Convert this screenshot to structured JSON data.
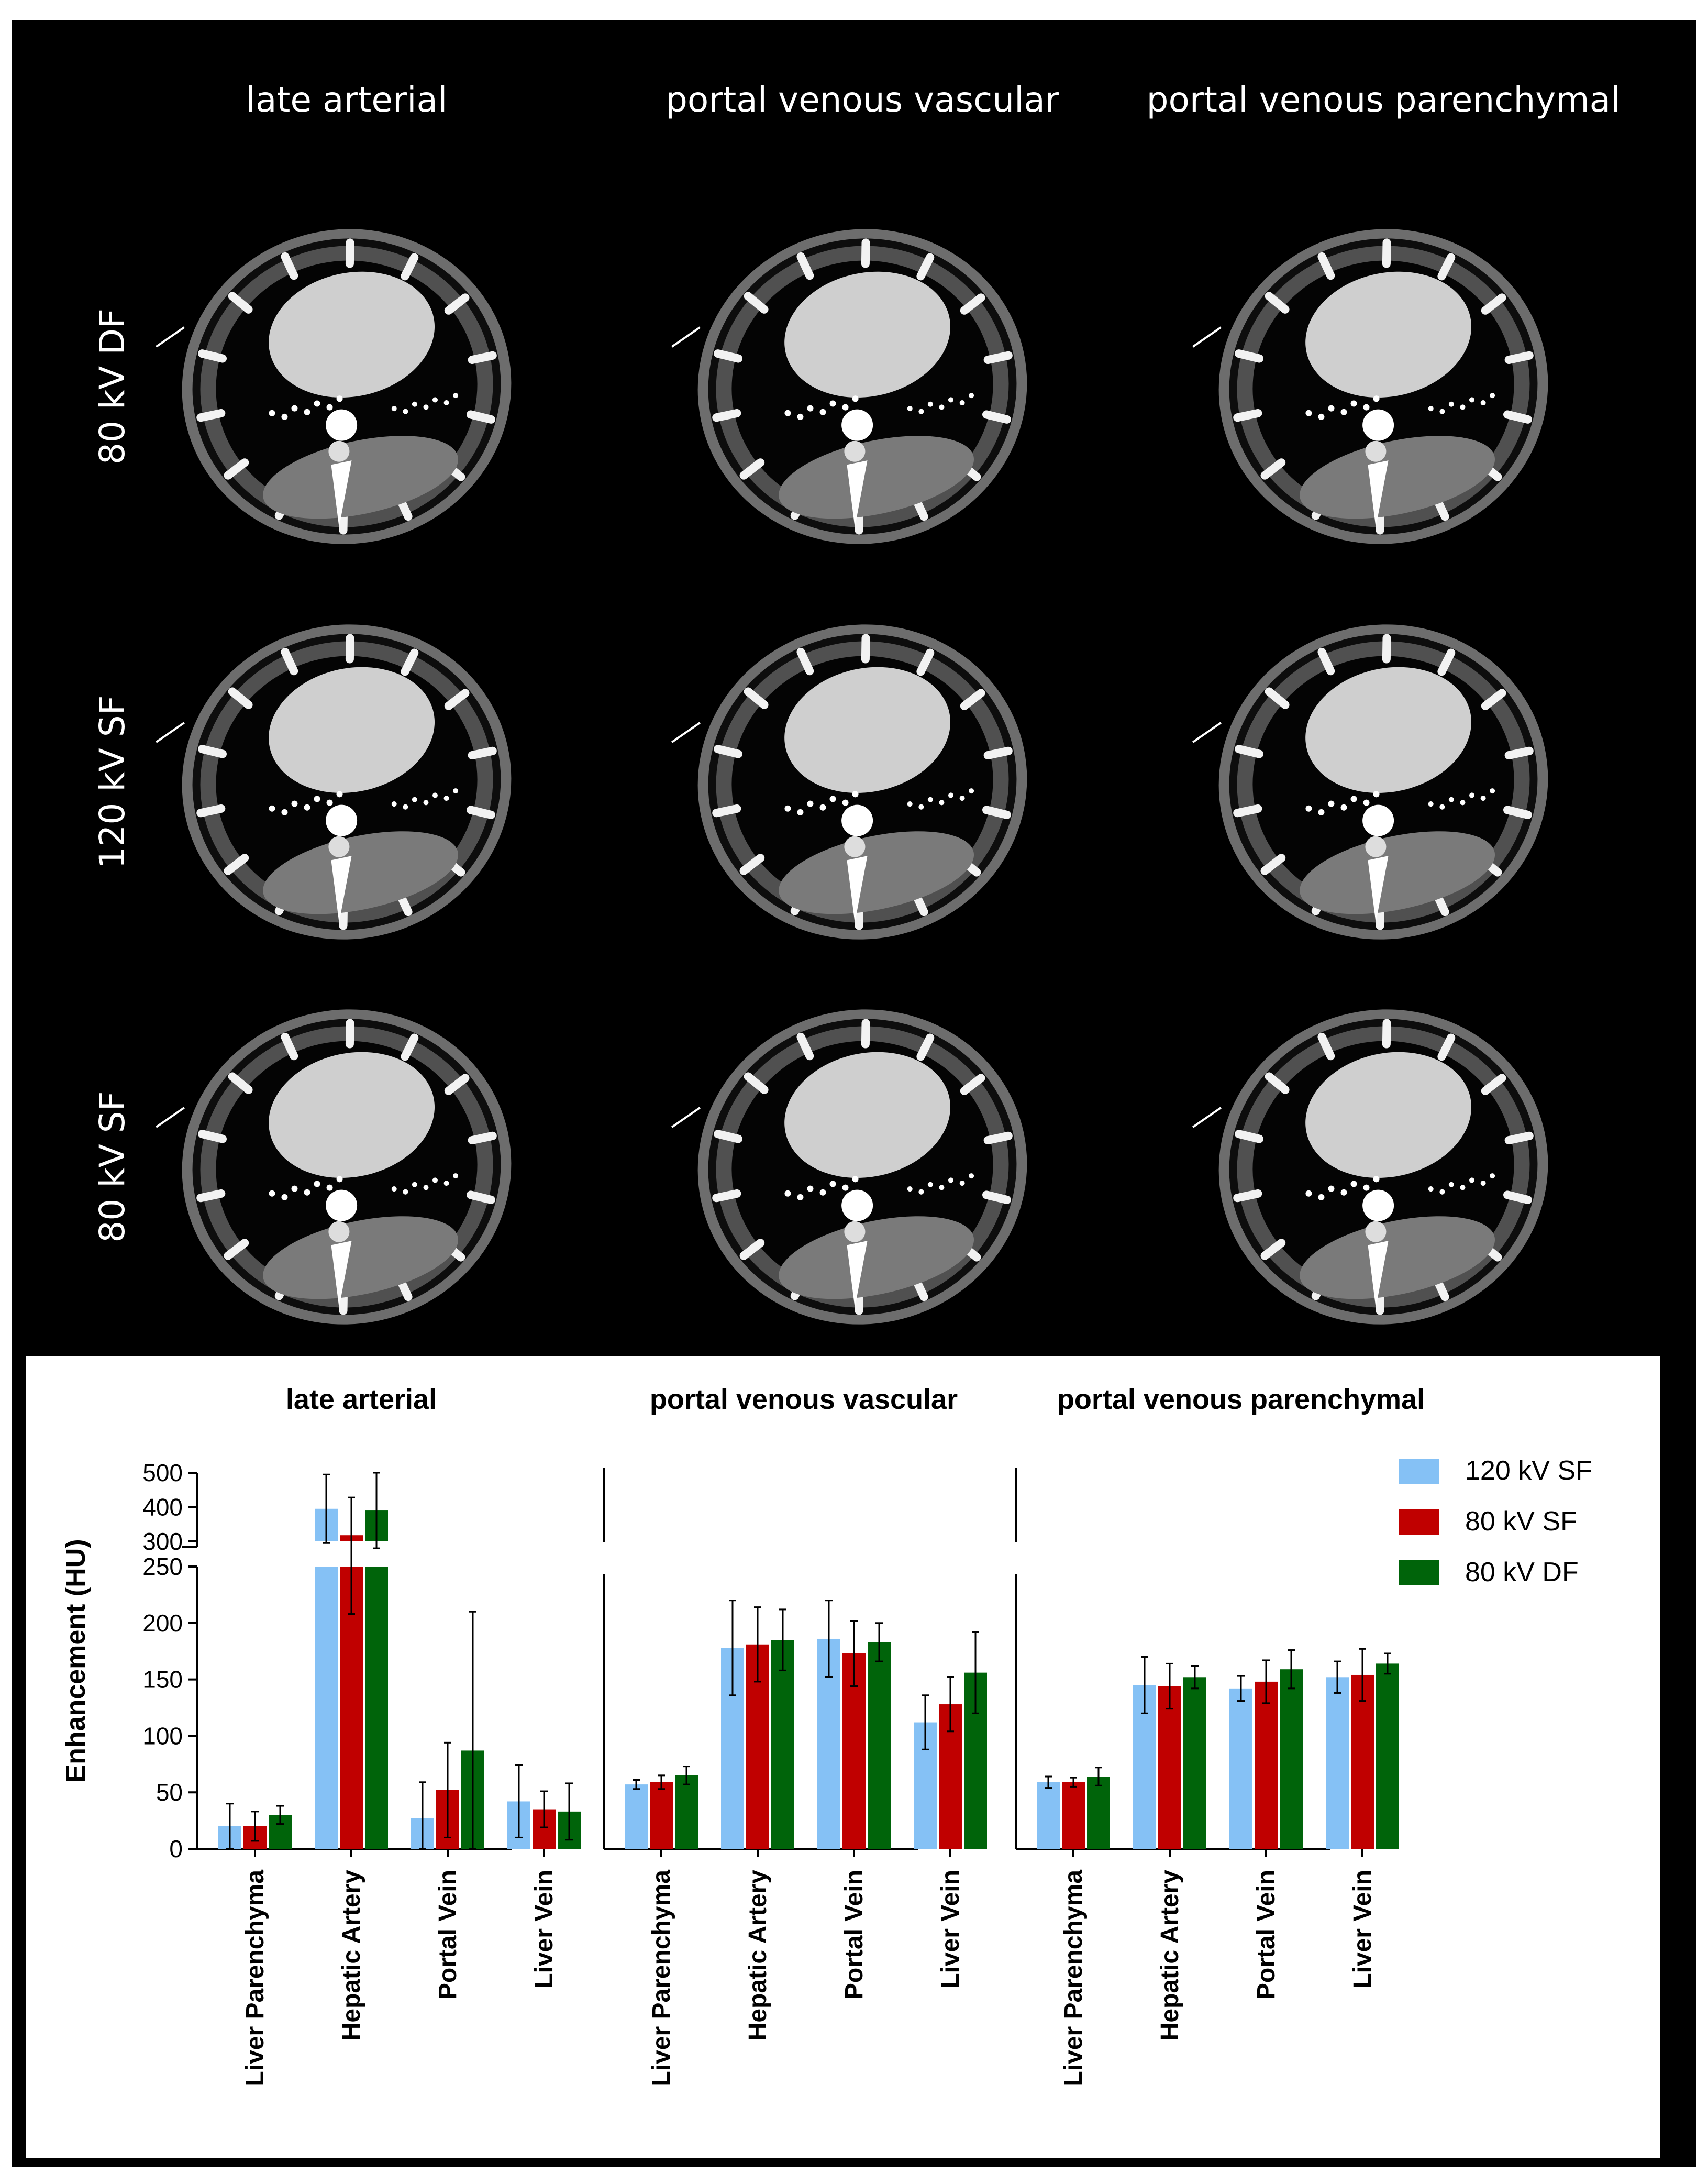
{
  "figure": {
    "columns": [
      "late arterial",
      "portal venous vascular",
      "portal venous parenchymal"
    ],
    "rows": [
      "80 kV  DF",
      "120 kV SF",
      "80 kV SF"
    ]
  },
  "chart_data": {
    "type": "bar",
    "ylabel": "Enhancement (HU)",
    "ylim_lower": [
      0,
      250
    ],
    "ylim_upper": [
      300,
      500
    ],
    "yticks_lower": [
      0,
      50,
      100,
      150,
      200,
      250
    ],
    "yticks_upper": [
      300,
      400,
      500
    ],
    "categories": [
      "Liver Parenchyma",
      "Hepatic Artery",
      "Portal Vein",
      "Liver Vein"
    ],
    "legend": [
      {
        "name": "120 kV SF",
        "color": "#85c1f5"
      },
      {
        "name": "80 kV SF",
        "color": "#c00000"
      },
      {
        "name": "80 kV DF",
        "color": "#00640a"
      }
    ],
    "panels": [
      {
        "title": "late arterial",
        "series": [
          {
            "name": "120 kV SF",
            "values": [
              20,
              395,
              27,
              42
            ],
            "errors": [
              20,
              100,
              32,
              32
            ]
          },
          {
            "name": "80 kV SF",
            "values": [
              20,
              318,
              52,
              35
            ],
            "errors": [
              13,
              110,
              42,
              16
            ]
          },
          {
            "name": "80 kV DF",
            "values": [
              30,
              390,
              87,
              33
            ],
            "errors": [
              8,
              110,
              123,
              25
            ]
          }
        ]
      },
      {
        "title": "portal venous vascular",
        "series": [
          {
            "name": "120 kV SF",
            "values": [
              57,
              178,
              186,
              112
            ],
            "errors": [
              4,
              42,
              34,
              24
            ]
          },
          {
            "name": "80 kV SF",
            "values": [
              59,
              181,
              173,
              128
            ],
            "errors": [
              6,
              33,
              29,
              24
            ]
          },
          {
            "name": "80 kV DF",
            "values": [
              65,
              185,
              183,
              156
            ],
            "errors": [
              8,
              27,
              17,
              36
            ]
          }
        ]
      },
      {
        "title": "portal venous parenchymal",
        "series": [
          {
            "name": "120 kV SF",
            "values": [
              59,
              145,
              142,
              152
            ],
            "errors": [
              5,
              25,
              11,
              14
            ]
          },
          {
            "name": "80 kV SF",
            "values": [
              59,
              144,
              148,
              154
            ],
            "errors": [
              4,
              20,
              19,
              23
            ]
          },
          {
            "name": "80 kV DF",
            "values": [
              64,
              152,
              159,
              164
            ],
            "errors": [
              8,
              10,
              17,
              9
            ]
          }
        ]
      }
    ]
  }
}
